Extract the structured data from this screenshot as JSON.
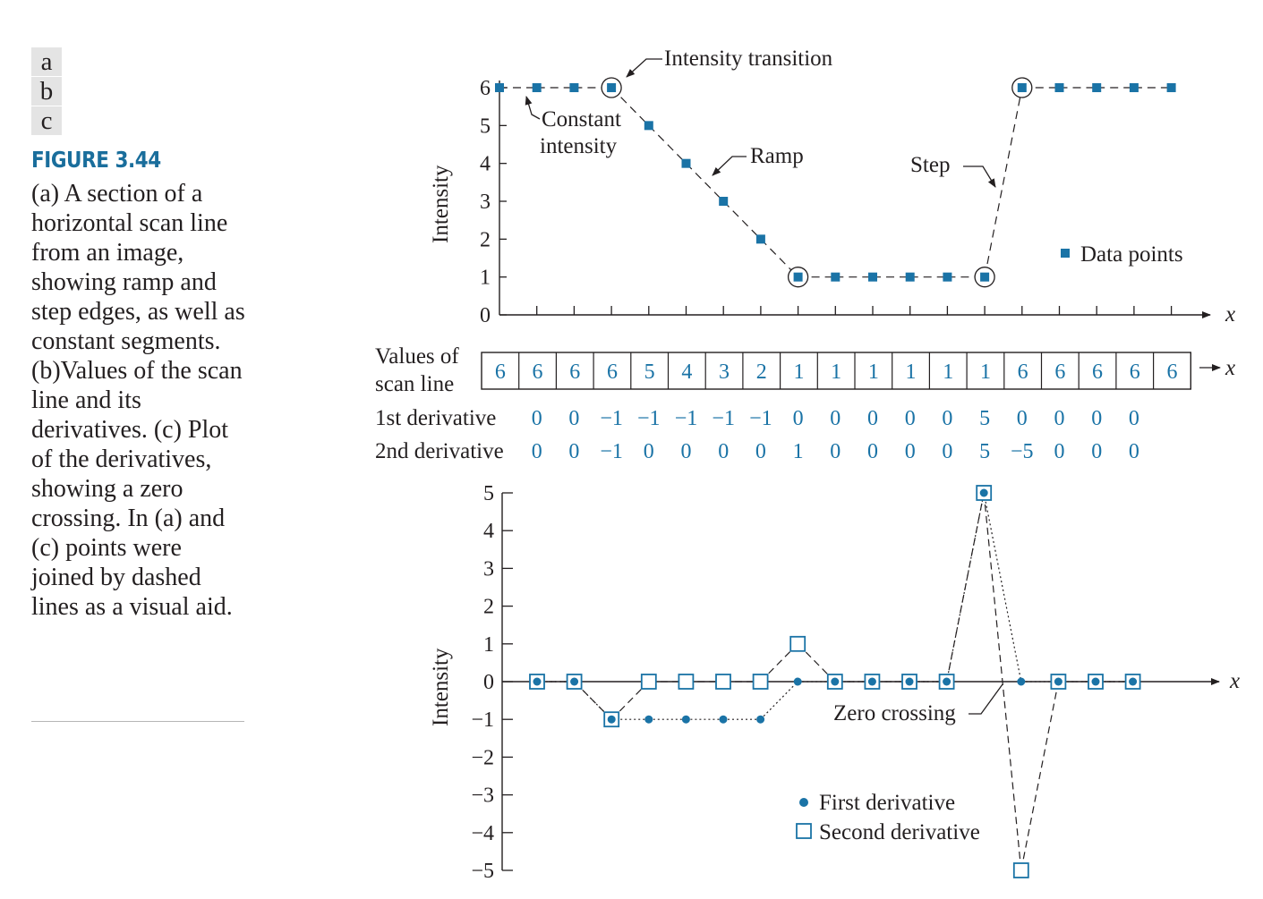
{
  "panel_labels": [
    "a",
    "b",
    "c"
  ],
  "figure_title": "FIGURE 3.44",
  "caption": "(a) A section of a horizontal scan line from an image, showing ramp and step edges, as well as constant segments. (b)Values of the scan line and its derivatives. (c) Plot of the derivatives, showing a zero crossing. In (a) and (c) points were joined by dashed lines as a visual aid.",
  "colors": {
    "data": "#1a73a6",
    "text": "#231f20",
    "panel_label_bg": "#e4e4e4"
  },
  "annotations": {
    "intensity_transition": "Intensity transition",
    "constant_intensity_1": "Constant",
    "constant_intensity_2": "intensity",
    "ramp": "Ramp",
    "step": "Step",
    "zero_crossing": "Zero crossing"
  },
  "table": {
    "label_line1": "Values of",
    "label_line2": "scan line",
    "first_label": "1st derivative",
    "second_label": "2nd derivative",
    "x_label": "x"
  },
  "chart_data": [
    {
      "type": "scatter",
      "ylabel": "Intensity",
      "xlabel": "x",
      "ylim": [
        0,
        6
      ],
      "yticks": [
        "0",
        "1",
        "2",
        "3",
        "4",
        "5",
        "6"
      ],
      "x": [
        1,
        2,
        3,
        4,
        5,
        6,
        7,
        8,
        9,
        10,
        11,
        12,
        13,
        14,
        15,
        16,
        17,
        18,
        19
      ],
      "series": [
        {
          "name": "Data points",
          "values": [
            6,
            6,
            6,
            6,
            5,
            4,
            3,
            2,
            1,
            1,
            1,
            1,
            1,
            1,
            6,
            6,
            6,
            6,
            6
          ]
        }
      ],
      "circled_points": [
        4,
        9,
        14,
        15
      ],
      "legend": "right"
    },
    {
      "type": "table",
      "rows": [
        {
          "name": "Values of scan line",
          "values": [
            "6",
            "6",
            "6",
            "6",
            "5",
            "4",
            "3",
            "2",
            "1",
            "1",
            "1",
            "1",
            "1",
            "1",
            "6",
            "6",
            "6",
            "6",
            "6"
          ]
        },
        {
          "name": "1st derivative",
          "values": [
            "0",
            "0",
            "−1",
            "−1",
            "−1",
            "−1",
            "−1",
            "0",
            "0",
            "0",
            "0",
            "0",
            "5",
            "0",
            "0",
            "0",
            "0"
          ]
        },
        {
          "name": "2nd derivative",
          "values": [
            "0",
            "0",
            "−1",
            "0",
            "0",
            "0",
            "0",
            "1",
            "0",
            "0",
            "0",
            "0",
            "5",
            "−5",
            "0",
            "0",
            "0"
          ]
        }
      ]
    },
    {
      "type": "line",
      "ylabel": "Intensity",
      "xlabel": "x",
      "ylim": [
        -5,
        5
      ],
      "yticks": [
        "5",
        "4",
        "3",
        "2",
        "1",
        "0",
        "−1",
        "−2",
        "−3",
        "−4",
        "−5"
      ],
      "x": [
        2,
        3,
        4,
        5,
        6,
        7,
        8,
        9,
        10,
        11,
        12,
        13,
        14,
        15,
        16,
        17,
        18
      ],
      "series": [
        {
          "name": "First derivative",
          "values": [
            0,
            0,
            -1,
            -1,
            -1,
            -1,
            -1,
            0,
            0,
            0,
            0,
            0,
            5,
            0,
            0,
            0,
            0
          ]
        },
        {
          "name": "Second derivative",
          "values": [
            0,
            0,
            -1,
            0,
            0,
            0,
            0,
            1,
            0,
            0,
            0,
            0,
            5,
            -5,
            0,
            0,
            0
          ]
        }
      ],
      "legend": "bottom-right"
    }
  ]
}
